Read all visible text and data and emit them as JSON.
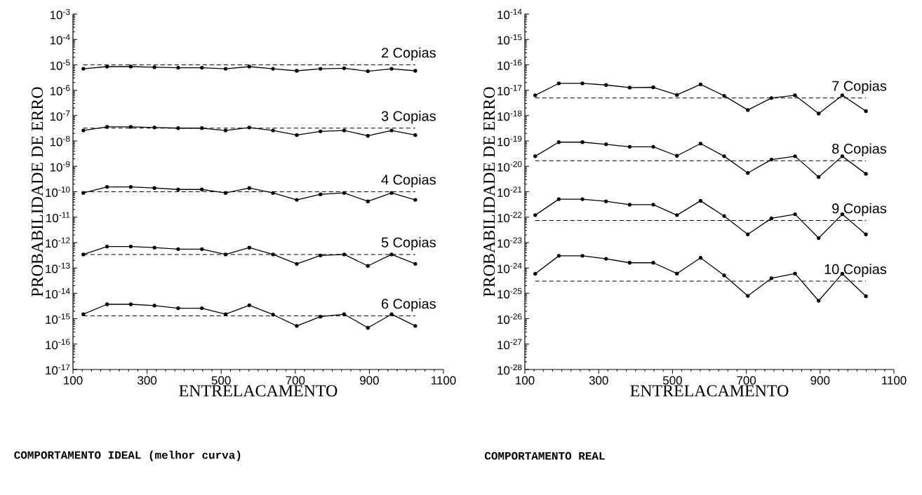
{
  "chart_data": [
    {
      "type": "line",
      "xlabel": "ENTRELACAMENTO",
      "ylabel": "PROBABILIDADE DE ERRO",
      "log": "y",
      "marker": "circle",
      "line_style": "solid",
      "x": [
        128,
        192,
        256,
        320,
        384,
        448,
        512,
        576,
        640,
        704,
        768,
        832,
        896,
        960,
        1024
      ],
      "xlim": [
        100,
        1100
      ],
      "xticks": [
        100,
        300,
        500,
        700,
        900,
        1100
      ],
      "ylim": [
        1e-17,
        0.001
      ],
      "yticks": [
        {
          "value": 1e-17,
          "label": "10$^{-17}$"
        },
        {
          "value": 1e-16,
          "label": "10$^{-16}$"
        },
        {
          "value": 1e-15,
          "label": "10$^{-15}$"
        },
        {
          "value": 1e-14,
          "label": "10$^{-14}$"
        },
        {
          "value": 1e-13,
          "label": "10$^{-13}$"
        },
        {
          "value": 1e-12,
          "label": "10$^{-12}$"
        },
        {
          "value": 1e-11,
          "label": "10$^{-11}$"
        },
        {
          "value": 1e-10,
          "label": "10$^{-10}$"
        },
        {
          "value": 1e-09,
          "label": "10$^{-9}$"
        },
        {
          "value": 1e-08,
          "label": "10$^{-8}$"
        },
        {
          "value": 1e-07,
          "label": "10$^{-7}$"
        },
        {
          "value": 1e-06,
          "label": "10$^{-6}$"
        },
        {
          "value": 1e-05,
          "label": "10$^{-5}$"
        },
        {
          "value": 0.0001,
          "label": "10$^{-4}$"
        },
        {
          "value": 0.001,
          "label": "10$^{-3}$"
        }
      ],
      "series": [
        {
          "name": "2 Copias",
          "color": "#000000",
          "values": [
            7e-06,
            8.5e-06,
            8.5e-06,
            8e-06,
            7.7e-06,
            7.7e-06,
            7e-06,
            8.5e-06,
            7e-06,
            5.8e-06,
            7e-06,
            7.3e-06,
            5.6e-06,
            7e-06,
            5.8e-06
          ]
        },
        {
          "name": "3 Copias",
          "color": "#000000",
          "values": [
            2.6e-08,
            3.6e-08,
            3.6e-08,
            3.4e-08,
            3.2e-08,
            3.2e-08,
            2.6e-08,
            3.4e-08,
            2.6e-08,
            1.7e-08,
            2.4e-08,
            2.6e-08,
            1.6e-08,
            2.6e-08,
            1.7e-08
          ]
        },
        {
          "name": "4 Copias",
          "color": "#000000",
          "values": [
            9e-11,
            1.55e-10,
            1.55e-10,
            1.4e-10,
            1.23e-10,
            1.23e-10,
            9e-11,
            1.4e-10,
            9e-11,
            4.8e-11,
            7.9e-11,
            9e-11,
            4.2e-11,
            9e-11,
            4.8e-11
          ]
        },
        {
          "name": "5 Copias",
          "color": "#000000",
          "values": [
            3.4e-13,
            7e-13,
            7e-13,
            6.3e-13,
            5.5e-13,
            5.5e-13,
            3.4e-13,
            6.3e-13,
            3.4e-13,
            1.45e-13,
            3.1e-13,
            3.4e-13,
            1.2e-13,
            3.4e-13,
            1.45e-13
          ]
        },
        {
          "name": "6 Copias",
          "color": "#000000",
          "values": [
            1.5e-15,
            3.7e-15,
            3.7e-15,
            3.3e-15,
            2.6e-15,
            2.6e-15,
            1.5e-15,
            3.4e-15,
            1.45e-15,
            5.2e-16,
            1.2e-15,
            1.5e-15,
            4.4e-16,
            1.5e-15,
            5.2e-16
          ]
        }
      ],
      "ref_lines": [
        {
          "axis": "y",
          "value": 1e-05,
          "line_style": "dashed",
          "color": "#000000"
        },
        {
          "axis": "y",
          "value": 3.2e-08,
          "line_style": "dashed",
          "color": "#000000"
        },
        {
          "axis": "y",
          "value": 1e-10,
          "line_style": "dashed",
          "color": "#000000"
        },
        {
          "axis": "y",
          "value": 3.4e-13,
          "line_style": "dashed",
          "color": "#000000"
        },
        {
          "axis": "y",
          "value": 1.3e-15,
          "line_style": "dashed",
          "color": "#000000"
        }
      ],
      "annotations": [
        "COMPORTAMENTO IDEAL (melhor curva)"
      ]
    },
    {
      "type": "line",
      "xlabel": "ENTRELACAMENTO",
      "ylabel": "PROBABILIDADE DE ERRO",
      "log": "y",
      "marker": "circle",
      "line_style": "solid",
      "x": [
        128,
        192,
        256,
        320,
        384,
        448,
        512,
        576,
        640,
        704,
        768,
        832,
        896,
        960,
        1024
      ],
      "xlim": [
        100,
        1100
      ],
      "xticks": [
        100,
        300,
        500,
        700,
        900,
        1100
      ],
      "ylim": [
        1e-28,
        1e-14
      ],
      "yticks": [
        {
          "value": 1e-28,
          "label": "10$^{-28}$"
        },
        {
          "value": 1e-27,
          "label": "10$^{-27}$"
        },
        {
          "value": 1e-26,
          "label": "10$^{-26}$"
        },
        {
          "value": 1e-25,
          "label": "10$^{-25}$"
        },
        {
          "value": 1e-24,
          "label": "10$^{-24}$"
        },
        {
          "value": 1e-23,
          "label": "10$^{-23}$"
        },
        {
          "value": 1e-22,
          "label": "10$^{-22}$"
        },
        {
          "value": 1e-21,
          "label": "10$^{-21}$"
        },
        {
          "value": 1e-20,
          "label": "10$^{-20}$"
        },
        {
          "value": 1e-19,
          "label": "10$^{-19}$"
        },
        {
          "value": 1e-18,
          "label": "10$^{-18}$"
        },
        {
          "value": 1e-17,
          "label": "10$^{-17}$"
        },
        {
          "value": 1e-16,
          "label": "10$^{-16}$"
        },
        {
          "value": 1e-15,
          "label": "10$^{-15}$"
        },
        {
          "value": 1e-14,
          "label": "10$^{-14}$"
        }
      ],
      "series": [
        {
          "name": "7 Copias",
          "color": "#000000",
          "values": [
            6.3e-18,
            1.85e-17,
            1.85e-17,
            1.6e-17,
            1.27e-17,
            1.3e-17,
            6.5e-18,
            1.7e-17,
            6e-18,
            1.66e-18,
            4.9e-18,
            6.3e-18,
            1.2e-18,
            6.3e-18,
            1.5e-18
          ]
        },
        {
          "name": "8 Copias",
          "color": "#000000",
          "values": [
            2.5e-20,
            9e-20,
            9e-20,
            7.4e-20,
            5.9e-20,
            5.9e-20,
            2.6e-20,
            7.9e-20,
            2.5e-20,
            5.5e-21,
            1.85e-20,
            2.5e-20,
            3.8e-21,
            2.5e-20,
            5.1e-21
          ]
        },
        {
          "name": "9 Copias",
          "color": "#000000",
          "values": [
            1.2e-22,
            5.1e-22,
            5.1e-22,
            4.2e-22,
            3.1e-22,
            3.1e-22,
            1.2e-22,
            4.4e-22,
            1.1e-22,
            2.1e-23,
            9e-23,
            1.3e-22,
            1.5e-23,
            1.3e-22,
            2.1e-23
          ]
        },
        {
          "name": "10 Copias",
          "color": "#000000",
          "values": [
            5.9e-25,
            3e-24,
            3e-24,
            2.3e-24,
            1.6e-24,
            1.6e-24,
            6e-25,
            2.5e-24,
            5.1e-25,
            7.9e-26,
            3.9e-25,
            6e-25,
            5.1e-26,
            5.9e-25,
            7.7e-26
          ]
        }
      ],
      "ref_lines": [
        {
          "axis": "y",
          "value": 4.9e-18,
          "line_style": "dashed",
          "color": "#000000"
        },
        {
          "axis": "y",
          "value": 1.66e-20,
          "line_style": "dashed",
          "color": "#000000"
        },
        {
          "axis": "y",
          "value": 7.4e-23,
          "line_style": "dashed",
          "color": "#000000"
        },
        {
          "axis": "y",
          "value": 3e-25,
          "line_style": "dashed",
          "color": "#000000"
        }
      ],
      "annotations": [
        "COMPORTAMENTO REAL"
      ]
    }
  ]
}
